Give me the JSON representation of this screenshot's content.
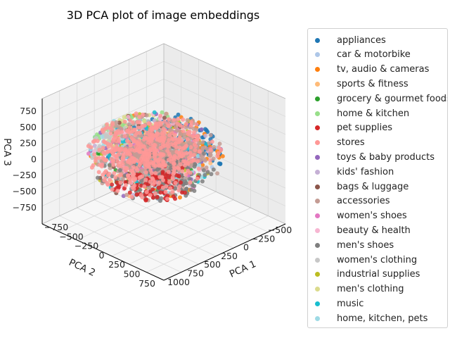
{
  "chart_data": {
    "type": "scatter",
    "projection": "3d",
    "title": "3D PCA plot of image embeddings",
    "xlabel": "PCA 1",
    "ylabel": "PCA 2",
    "zlabel": "PCA 3",
    "xticks": [
      "−500",
      "−250",
      "0",
      "250",
      "500",
      "750",
      "1000"
    ],
    "yticks": [
      "−750",
      "−500",
      "−250",
      "0",
      "250",
      "500",
      "750"
    ],
    "zticks": [
      "750",
      "500",
      "250",
      "0",
      "−250",
      "−500",
      "−750"
    ],
    "xlim": [
      -650,
      1150
    ],
    "ylim": [
      -800,
      800
    ],
    "zlim": [
      -800,
      900
    ],
    "grid": true,
    "legend_position": "outside-right",
    "series": [
      {
        "name": "appliances",
        "color": "#1f77b4"
      },
      {
        "name": "car & motorbike",
        "color": "#aec7e8"
      },
      {
        "name": "tv, audio & cameras",
        "color": "#ff7f0e"
      },
      {
        "name": "sports & fitness",
        "color": "#ffbb78"
      },
      {
        "name": "grocery & gourmet foods",
        "color": "#2ca02c"
      },
      {
        "name": "home & kitchen",
        "color": "#98df8a"
      },
      {
        "name": "pet supplies",
        "color": "#d62728"
      },
      {
        "name": "stores",
        "color": "#ff9896"
      },
      {
        "name": "toys & baby products",
        "color": "#9467bd"
      },
      {
        "name": "kids' fashion",
        "color": "#c5b0d5"
      },
      {
        "name": "bags & luggage",
        "color": "#8c564b"
      },
      {
        "name": "accessories",
        "color": "#c49c94"
      },
      {
        "name": "women's shoes",
        "color": "#e377c2"
      },
      {
        "name": "beauty & health",
        "color": "#f7b6d2"
      },
      {
        "name": "men's shoes",
        "color": "#7f7f7f"
      },
      {
        "name": "women's clothing",
        "color": "#c7c7c7"
      },
      {
        "name": "industrial supplies",
        "color": "#bcbd22"
      },
      {
        "name": "men's clothing",
        "color": "#dbdb8d"
      },
      {
        "name": "music",
        "color": "#17becf"
      },
      {
        "name": "home, kitchen, pets",
        "color": "#9edae5"
      }
    ]
  }
}
